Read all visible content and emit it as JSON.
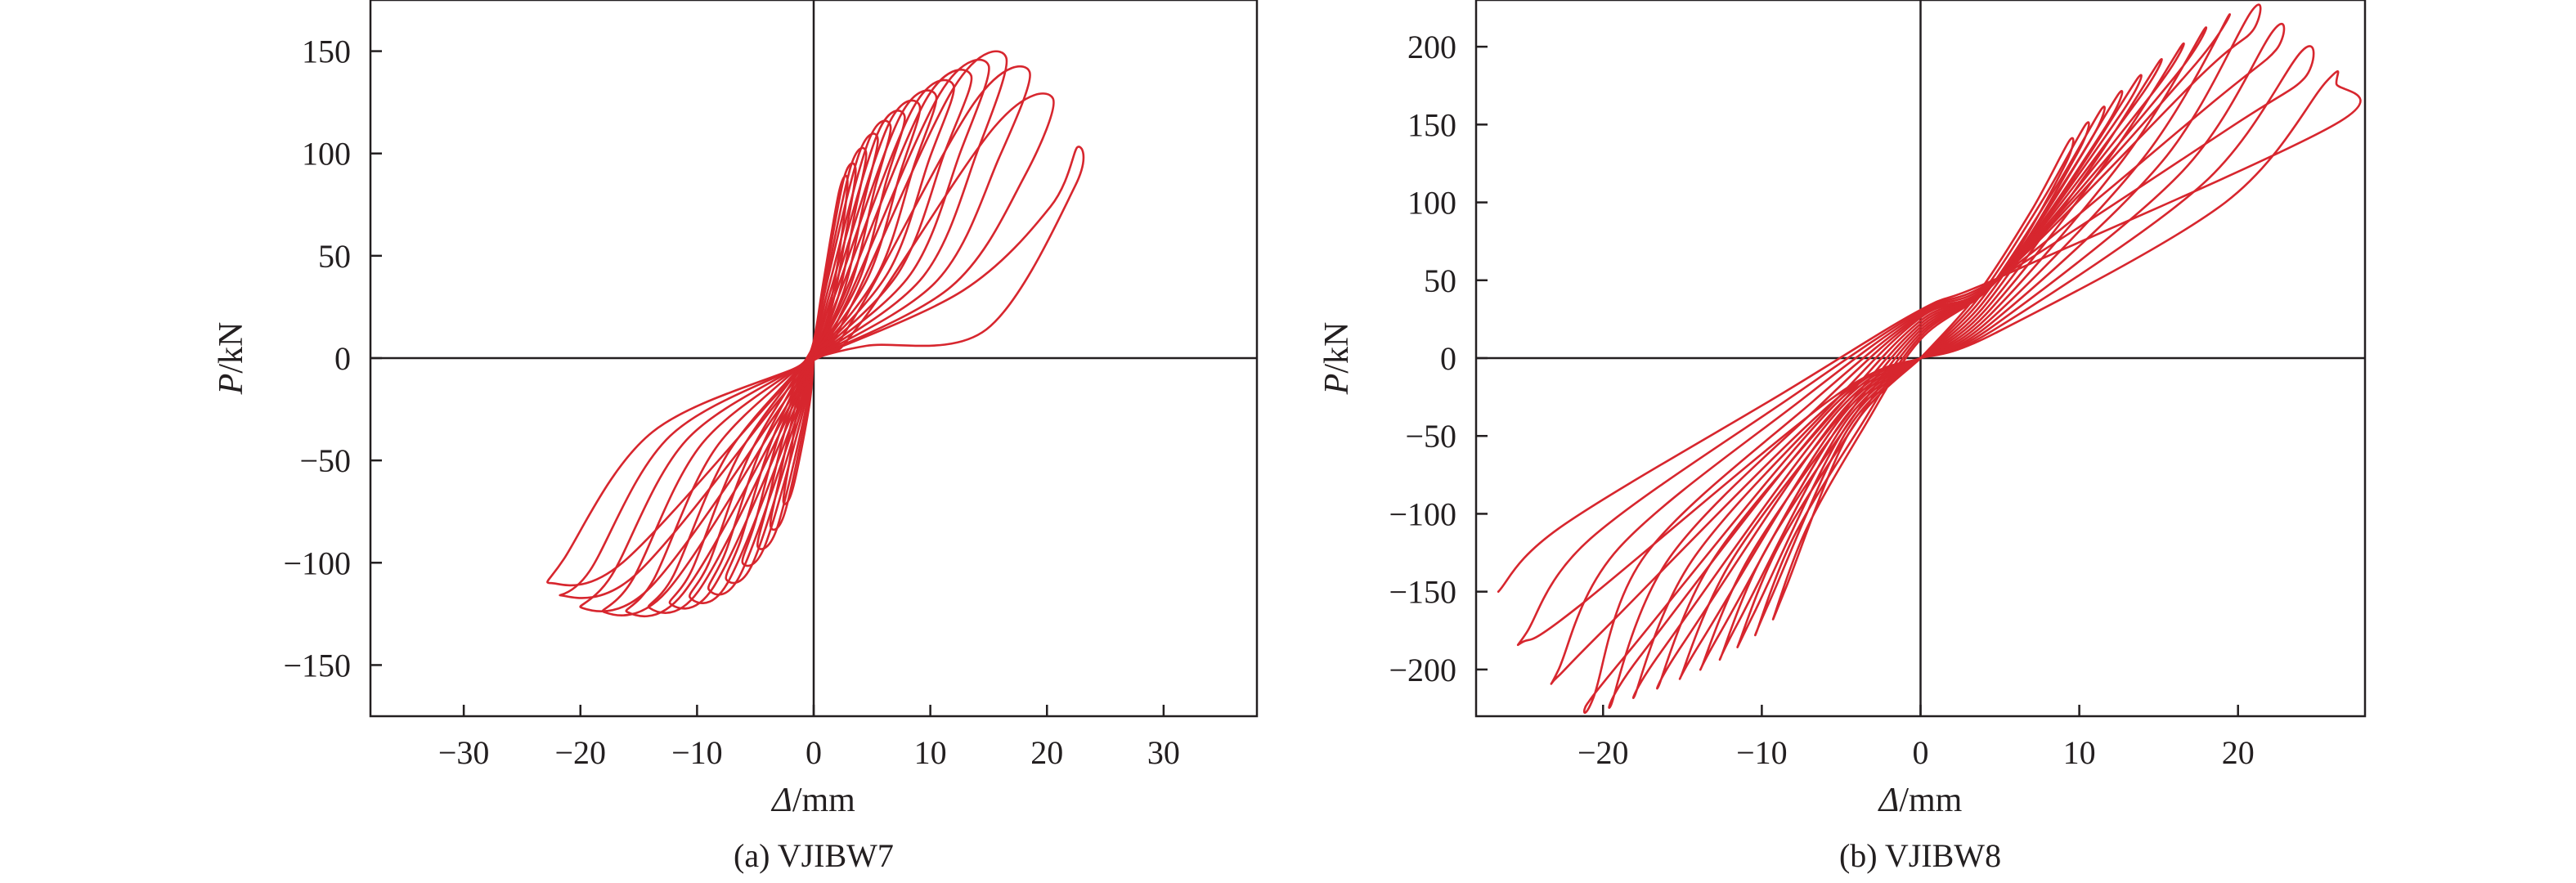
{
  "colors": {
    "curve": "#d7262e",
    "axis": "#231f20",
    "background": "#ffffff"
  },
  "chart_data": [
    {
      "type": "line",
      "caption": "(a) VJIBW7",
      "xlabel_var": "Δ",
      "xlabel_unit": "/mm",
      "ylabel_var": "P",
      "ylabel_unit": "/kN",
      "xlim": [
        -38,
        38
      ],
      "ylim": [
        -175,
        175
      ],
      "xticks": [
        -30,
        -20,
        -10,
        0,
        10,
        20,
        30
      ],
      "yticks": [
        -150,
        -100,
        -50,
        0,
        50,
        100,
        150
      ],
      "xtick_labels": [
        "−30",
        "−20",
        "−10",
        "0",
        "10",
        "20",
        "30"
      ],
      "ytick_labels": [
        "−150",
        "−100",
        "−50",
        "0",
        "50",
        "100",
        "150"
      ],
      "zero_lines": true,
      "grid": false,
      "series": [
        {
          "x": [
            0,
            1.2,
            2.2,
            2.9,
            2.2,
            0.8,
            0,
            -1.2,
            -2.0,
            -2.6,
            -1.8,
            -0.4,
            0
          ],
          "y": [
            0,
            20,
            52,
            86,
            82,
            36,
            8,
            -18,
            -48,
            -70,
            -64,
            -24,
            0
          ]
        },
        {
          "x": [
            0,
            1.6,
            2.8,
            3.6,
            2.6,
            0.9,
            0,
            -1.6,
            -2.9,
            -3.7,
            -2.5,
            -0.6,
            0
          ],
          "y": [
            0,
            26,
            62,
            92,
            88,
            36,
            8,
            -24,
            -58,
            -82,
            -76,
            -26,
            0
          ]
        },
        {
          "x": [
            0,
            2.1,
            3.5,
            4.5,
            3.2,
            1.0,
            0,
            -2.3,
            -3.9,
            -4.8,
            -3.2,
            -0.8,
            0
          ],
          "y": [
            0,
            30,
            70,
            100,
            94,
            36,
            8,
            -32,
            -70,
            -92,
            -84,
            -28,
            0
          ]
        },
        {
          "x": [
            0,
            2.6,
            4.3,
            5.5,
            3.9,
            1.1,
            0,
            -3.0,
            -5.0,
            -6.1,
            -4.2,
            -1.0,
            0
          ],
          "y": [
            0,
            33,
            76,
            107,
            100,
            36,
            7,
            -38,
            -80,
            -100,
            -92,
            -28,
            0
          ]
        },
        {
          "x": [
            0,
            3.2,
            5.2,
            6.6,
            4.7,
            1.3,
            0,
            -3.7,
            -6.2,
            -7.5,
            -5.2,
            -1.2,
            0
          ],
          "y": [
            0,
            36,
            82,
            113,
            106,
            35,
            7,
            -42,
            -88,
            -108,
            -100,
            -28,
            0
          ]
        },
        {
          "x": [
            0,
            3.9,
            6.2,
            7.8,
            5.5,
            1.5,
            0,
            -4.5,
            -7.5,
            -9.0,
            -6.3,
            -1.4,
            0
          ],
          "y": [
            0,
            38,
            86,
            118,
            110,
            34,
            6,
            -44,
            -94,
            -113,
            -106,
            -28,
            0
          ]
        },
        {
          "x": [
            0,
            4.7,
            7.4,
            9.1,
            6.4,
            1.7,
            0,
            -5.4,
            -8.9,
            -10.6,
            -7.4,
            -1.6,
            0
          ],
          "y": [
            0,
            40,
            90,
            123,
            114,
            33,
            6,
            -46,
            -99,
            -117,
            -110,
            -28,
            0
          ]
        },
        {
          "x": [
            0,
            5.5,
            8.6,
            10.5,
            7.4,
            1.9,
            0,
            -6.3,
            -10.4,
            -12.3,
            -8.6,
            -1.8,
            0
          ],
          "y": [
            0,
            41,
            94,
            128,
            118,
            32,
            5,
            -46,
            -103,
            -120,
            -112,
            -27,
            0
          ]
        },
        {
          "x": [
            0,
            6.4,
            9.9,
            12.0,
            8.5,
            2.1,
            0,
            -7.3,
            -12.0,
            -14.1,
            -9.9,
            -2.0,
            0
          ],
          "y": [
            0,
            42,
            97,
            133,
            122,
            30,
            4,
            -46,
            -106,
            -122,
            -114,
            -26,
            0
          ]
        },
        {
          "x": [
            0,
            7.3,
            11.2,
            13.5,
            9.6,
            2.4,
            0,
            -8.4,
            -13.7,
            -16.0,
            -11.2,
            -2.2,
            0
          ],
          "y": [
            0,
            42,
            100,
            138,
            126,
            28,
            3,
            -44,
            -108,
            -124,
            -115,
            -25,
            0
          ]
        },
        {
          "x": [
            0,
            8.3,
            12.6,
            15.0,
            10.8,
            2.7,
            0,
            -9.6,
            -15.5,
            -18.0,
            -12.6,
            -2.4,
            0
          ],
          "y": [
            0,
            41,
            101,
            143,
            129,
            26,
            2,
            -42,
            -108,
            -124,
            -114,
            -24,
            0
          ]
        },
        {
          "x": [
            0,
            9.4,
            14.1,
            16.5,
            12.0,
            3.0,
            0,
            -10.9,
            -17.3,
            -19.9,
            -14.0,
            -2.6,
            0
          ],
          "y": [
            0,
            40,
            102,
            147,
            132,
            23,
            1,
            -40,
            -106,
            -122,
            -112,
            -22,
            0
          ]
        },
        {
          "x": [
            0,
            10.6,
            15.9,
            18.5,
            13.8,
            3.5,
            0,
            -12.3,
            -19.2,
            -21.6,
            -15.3,
            -2.9,
            0
          ],
          "y": [
            0,
            38,
            98,
            140,
            125,
            20,
            0,
            -38,
            -104,
            -116,
            -106,
            -20,
            0
          ]
        },
        {
          "x": [
            0,
            11.8,
            18.0,
            20.5,
            15.5,
            4.0,
            0,
            -13.8,
            -21.4,
            -22.4,
            -16.4,
            -3.2,
            0
          ],
          "y": [
            0,
            35,
            88,
            127,
            113,
            17,
            -1,
            -36,
            -98,
            -110,
            -100,
            -18,
            0
          ]
        },
        {
          "x": [
            0,
            12.8,
            20.3,
            22.6,
            22.4,
            14.8,
            4.5,
            0
          ],
          "y": [
            0,
            33,
            74,
            103,
            84,
            14,
            6,
            0
          ]
        }
      ]
    },
    {
      "type": "line",
      "caption": "(b) VJIBW8",
      "xlabel_var": "Δ",
      "xlabel_unit": "/mm",
      "ylabel_var": "P",
      "ylabel_unit": "/kN",
      "xlim": [
        -28,
        28
      ],
      "ylim": [
        -230,
        230
      ],
      "xticks": [
        -20,
        -10,
        0,
        10,
        20
      ],
      "yticks": [
        -200,
        -150,
        -100,
        -50,
        0,
        50,
        100,
        150,
        200
      ],
      "xtick_labels": [
        "−20",
        "−10",
        "0",
        "10",
        "20"
      ],
      "ytick_labels": [
        "−200",
        "−150",
        "−100",
        "−50",
        "0",
        "50",
        "100",
        "150",
        "200"
      ],
      "zero_lines": true,
      "grid": false,
      "series": [
        {
          "x": [
            0,
            3.5,
            7.0,
            9.4,
            9.0,
            4.8,
            0,
            -3.6,
            -7.2,
            -9.2,
            -8.5,
            -4.5,
            0
          ],
          "y": [
            0,
            40,
            95,
            140,
            122,
            50,
            12,
            -45,
            -110,
            -165,
            -148,
            -48,
            0
          ]
        },
        {
          "x": [
            0,
            3.6,
            7.6,
            10.4,
            9.8,
            5.0,
            0,
            -3.8,
            -8.0,
            -10.3,
            -9.5,
            -4.6,
            0
          ],
          "y": [
            0,
            38,
            100,
            150,
            130,
            52,
            14,
            -44,
            -115,
            -175,
            -156,
            -46,
            0
          ]
        },
        {
          "x": [
            0,
            3.7,
            8.3,
            11.4,
            10.6,
            5.0,
            0,
            -4.1,
            -8.9,
            -11.4,
            -10.5,
            -4.7,
            0
          ],
          "y": [
            0,
            36,
            106,
            160,
            138,
            52,
            16,
            -42,
            -120,
            -182,
            -164,
            -44,
            0
          ]
        },
        {
          "x": [
            0,
            3.8,
            9.0,
            12.5,
            11.5,
            5.0,
            0,
            -4.4,
            -9.8,
            -12.5,
            -11.5,
            -4.8,
            0
          ],
          "y": [
            0,
            34,
            112,
            170,
            146,
            52,
            18,
            -40,
            -124,
            -190,
            -170,
            -42,
            0
          ]
        },
        {
          "x": [
            0,
            3.9,
            9.8,
            13.7,
            12.5,
            5.0,
            0,
            -4.7,
            -10.8,
            -13.7,
            -12.6,
            -4.9,
            0
          ],
          "y": [
            0,
            32,
            118,
            180,
            155,
            52,
            20,
            -38,
            -128,
            -196,
            -176,
            -40,
            0
          ]
        },
        {
          "x": [
            0,
            4.0,
            10.7,
            15.0,
            13.5,
            5.0,
            0,
            -5.0,
            -11.9,
            -15.0,
            -13.7,
            -5.0,
            0
          ],
          "y": [
            0,
            30,
            122,
            190,
            163,
            52,
            22,
            -36,
            -130,
            -202,
            -180,
            -38,
            0
          ]
        },
        {
          "x": [
            0,
            4.1,
            11.7,
            16.4,
            14.6,
            5.0,
            0,
            -5.4,
            -13.1,
            -16.4,
            -15.0,
            -5.1,
            0
          ],
          "y": [
            0,
            28,
            126,
            200,
            170,
            52,
            24,
            -34,
            -130,
            -208,
            -184,
            -36,
            0
          ]
        },
        {
          "x": [
            0,
            4.2,
            12.8,
            17.8,
            15.8,
            5.0,
            0,
            -5.8,
            -14.4,
            -17.9,
            -16.3,
            -5.2,
            0
          ],
          "y": [
            0,
            26,
            128,
            210,
            178,
            52,
            26,
            -32,
            -130,
            -214,
            -188,
            -34,
            0
          ]
        },
        {
          "x": [
            0,
            4.3,
            14.0,
            19.3,
            17.0,
            5.0,
            0,
            -6.3,
            -15.8,
            -19.4,
            -17.7,
            -5.3,
            0
          ],
          "y": [
            0,
            24,
            128,
            218,
            185,
            52,
            27,
            -30,
            -128,
            -220,
            -192,
            -32,
            0
          ]
        },
        {
          "x": [
            0,
            4.4,
            15.2,
            20.8,
            20.9,
            17.5,
            5.0,
            0,
            -6.8,
            -17.3,
            -20.6,
            -21.0,
            -18.5,
            -5.4,
            0
          ],
          "y": [
            0,
            22,
            126,
            222,
            210,
            180,
            52,
            28,
            -28,
            -126,
            -218,
            -222,
            -190,
            -30,
            0
          ]
        },
        {
          "x": [
            0,
            4.5,
            16.5,
            22.2,
            22.4,
            18.5,
            5.0,
            0,
            -7.4,
            -19.0,
            -22.8,
            -22.9,
            -20.0,
            -5.5,
            0
          ],
          "y": [
            0,
            20,
            120,
            210,
            198,
            165,
            52,
            29,
            -26,
            -122,
            -200,
            -205,
            -175,
            -28,
            0
          ]
        },
        {
          "x": [
            0,
            4.6,
            17.8,
            24.0,
            24.2,
            19.8,
            5.0,
            0,
            -8.0,
            -20.8,
            -24.8,
            -25.0,
            -21.6,
            -5.6,
            0
          ],
          "y": [
            0,
            18,
            112,
            197,
            180,
            150,
            52,
            30,
            -24,
            -116,
            -176,
            -182,
            -160,
            -26,
            0
          ]
        },
        {
          "x": [
            0,
            4.7,
            19.2,
            25.6,
            26.2,
            26.1,
            5.0,
            0,
            -8.6,
            -22.6,
            -26.6
          ],
          "y": [
            0,
            16,
            100,
            178,
            176,
            150,
            52,
            31,
            -22,
            -108,
            -150
          ]
        }
      ]
    }
  ]
}
